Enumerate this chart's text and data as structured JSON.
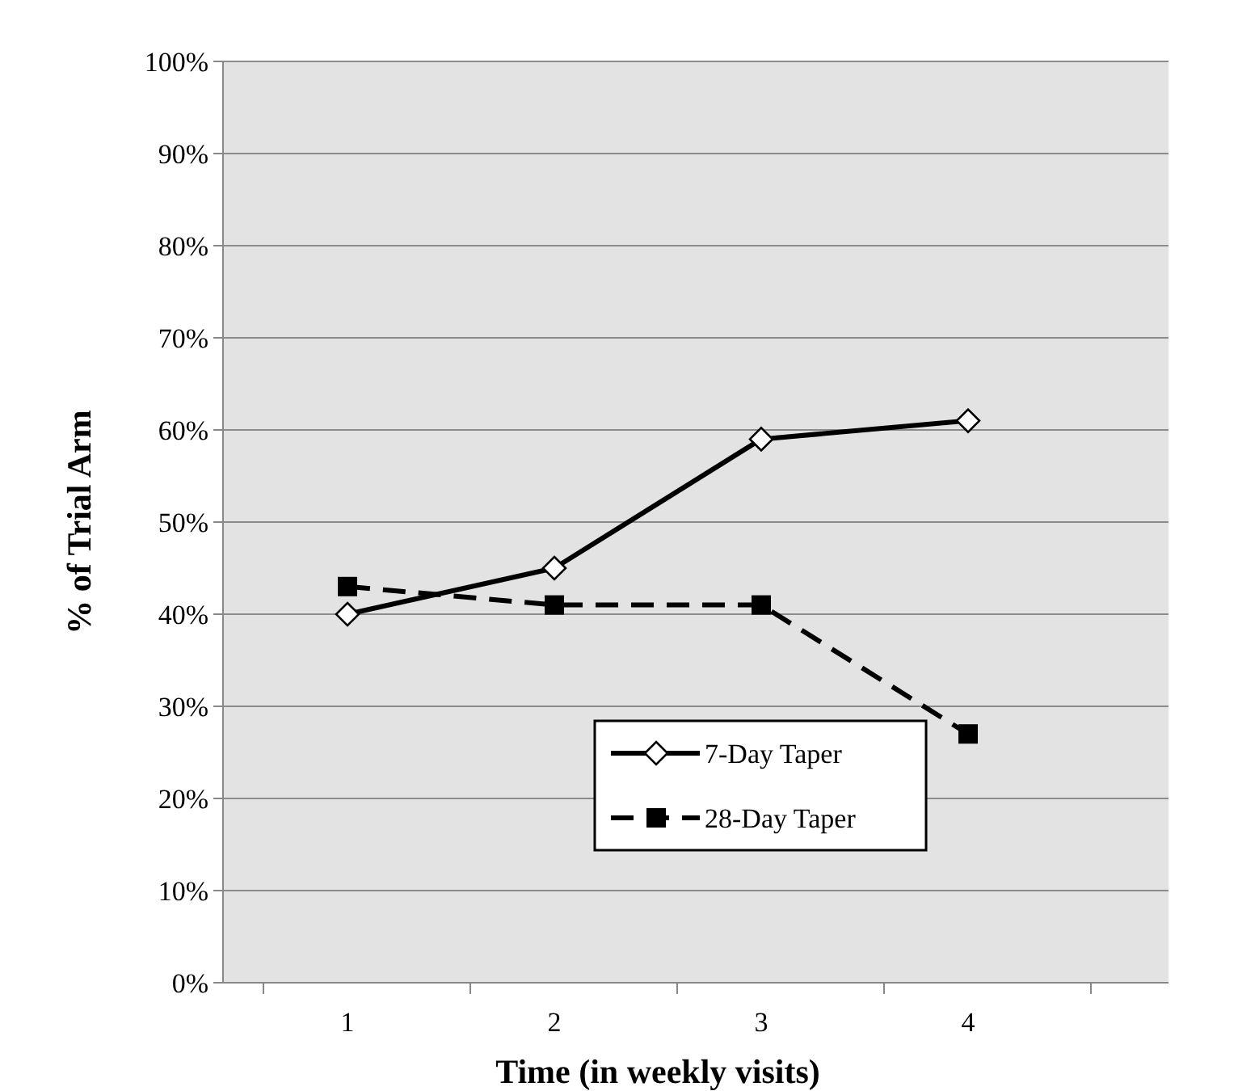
{
  "chart_data": {
    "type": "line",
    "xlabel": "Time (in weekly visits)",
    "ylabel": "% of Trial Arm",
    "categories": [
      "1",
      "2",
      "3",
      "4"
    ],
    "series": [
      {
        "name": "7-Day Taper",
        "color": "#000000",
        "values": [
          40,
          45,
          59,
          61
        ],
        "marker": "diamond",
        "line_style": "solid"
      },
      {
        "name": "28-Day Taper",
        "color": "#000000",
        "values": [
          43,
          41,
          41,
          27
        ],
        "marker": "square",
        "line_style": "dashed"
      }
    ],
    "ylim": [
      0,
      100
    ],
    "yticks": [
      {
        "value": 0,
        "label": "0%"
      },
      {
        "value": 10,
        "label": "10%"
      },
      {
        "value": 20,
        "label": "20%"
      },
      {
        "value": 30,
        "label": "30%"
      },
      {
        "value": 40,
        "label": "40%"
      },
      {
        "value": 50,
        "label": "50%"
      },
      {
        "value": 60,
        "label": "60%"
      },
      {
        "value": 70,
        "label": "70%"
      },
      {
        "value": 80,
        "label": "80%"
      },
      {
        "value": 90,
        "label": "90%"
      },
      {
        "value": 100,
        "label": "100%"
      }
    ],
    "grid": "y",
    "legend": "bottom right"
  }
}
